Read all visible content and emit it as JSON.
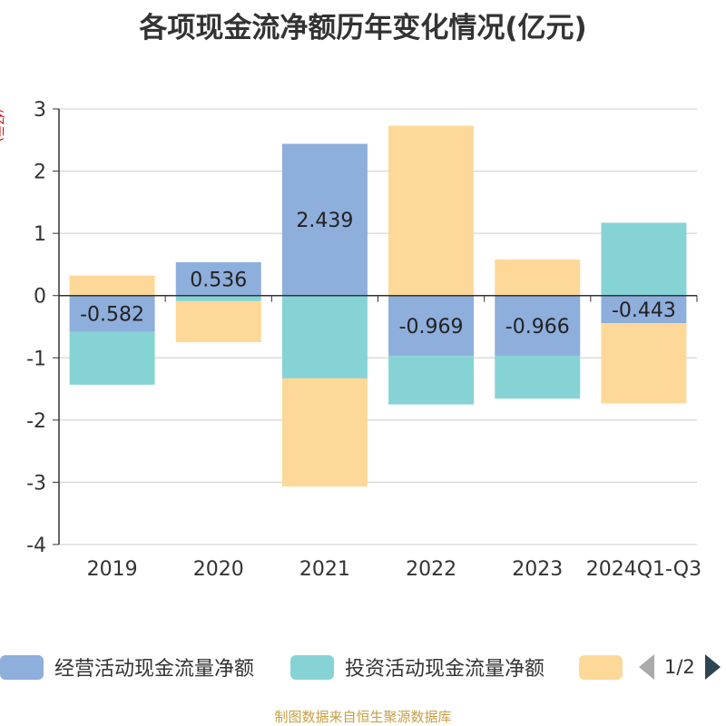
{
  "title": "各项现金流净额历年变化情况(亿元)",
  "unit_label": "(亿元)",
  "source_note": "制图数据来自恒生聚源数据库",
  "legend": {
    "items": [
      {
        "label": "经营活动现金流量净额",
        "color": "#8eaedc"
      },
      {
        "label": "投资活动现金流量净额",
        "color": "#86d3d6"
      },
      {
        "label": "",
        "color": "#fdd898"
      }
    ],
    "page": "1/2"
  },
  "chart_data": {
    "type": "bar",
    "stacked": true,
    "categories": [
      "2019",
      "2020",
      "2021",
      "2022",
      "2023",
      "2024Q1-Q3"
    ],
    "series": [
      {
        "name": "经营活动现金流量净额",
        "color": "#8eaedc",
        "values": [
          -0.582,
          0.536,
          2.439,
          -0.969,
          -0.966,
          -0.443
        ],
        "show_labels": true
      },
      {
        "name": "投资活动现金流量净额",
        "color": "#86d3d6",
        "values": [
          -0.85,
          -0.09,
          -1.33,
          -0.78,
          -0.69,
          1.17
        ],
        "show_labels": false
      },
      {
        "name": "",
        "color": "#fdd898",
        "values": [
          0.32,
          -0.66,
          -1.74,
          2.73,
          0.58,
          -1.29
        ],
        "show_labels": false
      }
    ],
    "ylim": [
      -4,
      3
    ],
    "yticks": [
      3,
      2,
      1,
      0,
      -1,
      -2,
      -3,
      -4
    ],
    "grid": true
  }
}
